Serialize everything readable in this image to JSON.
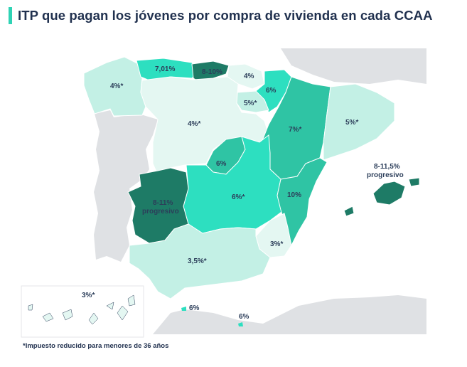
{
  "title": "ITP que pagan los jóvenes por compra de vivienda en cada CCAA",
  "footnote": "*Impuesto reducido para menores de 36 años",
  "colors": {
    "level_lightest": "#e9f7f4",
    "level_light": "#bff0e4",
    "level_mid": "#2ddfc0",
    "level_teal": "#2fc4a4",
    "level_dark": "#1e7b66",
    "outside": "#dfe1e4"
  },
  "regions": {
    "galicia": "4%*",
    "asturias": "7,01%",
    "cantabria": "8-10%",
    "pais_vasco": "4%",
    "navarra": "6%",
    "la_rioja": "5%*",
    "castilla_leon": "4%*",
    "aragon": "7%*",
    "cataluna": "5%*",
    "madrid": "6%",
    "castilla_la_mancha": "6%*",
    "comunitat_valenciana": "10%",
    "extremadura_value": "8-11%",
    "extremadura_note": "progresivo",
    "baleares_value": "8-11,5%",
    "baleares_note": "progresivo",
    "murcia": "3%*",
    "andalucia": "3,5%*",
    "canarias": "3%*",
    "ceuta": "6%",
    "melilla": "6%"
  }
}
